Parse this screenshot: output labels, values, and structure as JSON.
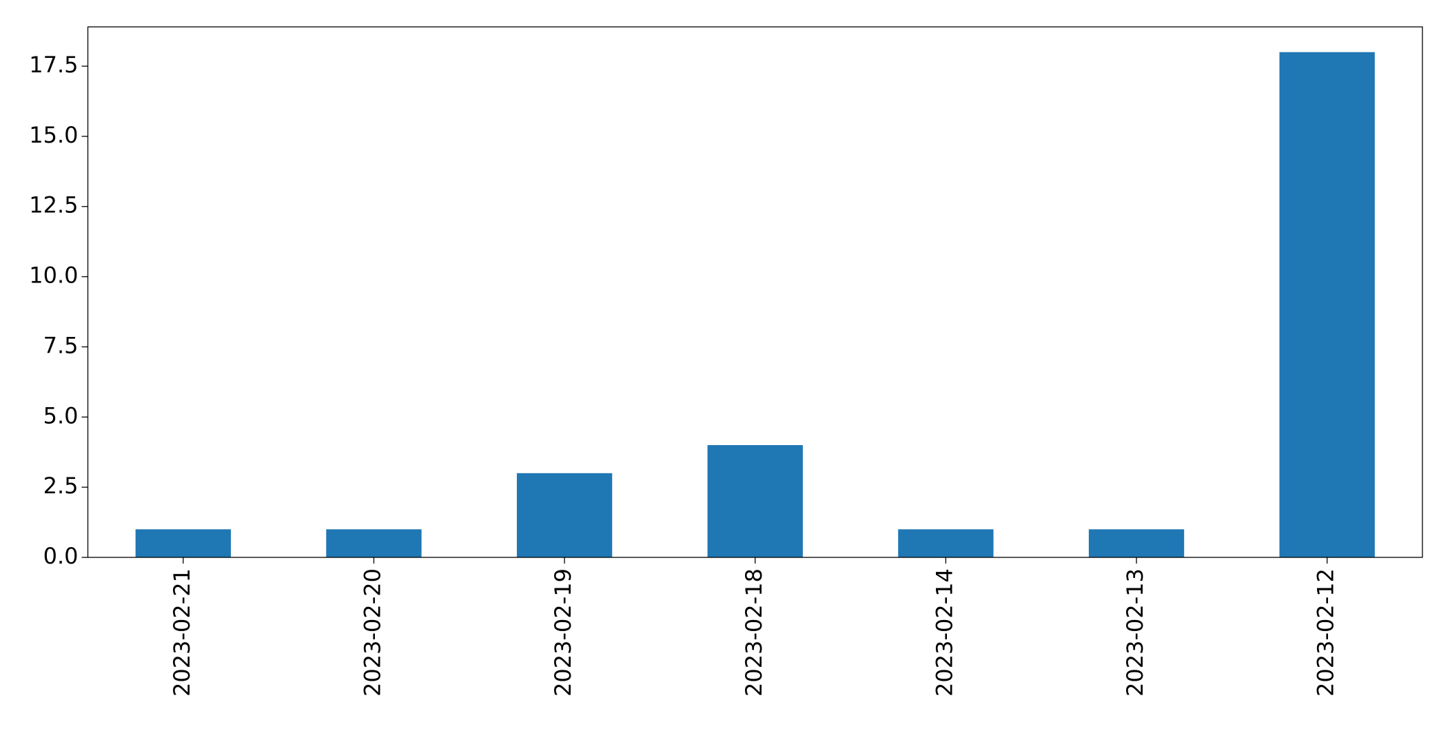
{
  "chart_data": {
    "type": "bar",
    "categories": [
      "2023-02-21",
      "2023-02-20",
      "2023-02-19",
      "2023-02-18",
      "2023-02-14",
      "2023-02-13",
      "2023-02-12"
    ],
    "values": [
      1,
      1,
      3,
      4,
      1,
      1,
      18
    ],
    "color": "#1f77b4",
    "ylim": [
      0,
      18.9
    ],
    "yticks": [
      {
        "value": 0,
        "label": "0.0"
      },
      2.5,
      {
        "value": 5,
        "label": "5.0"
      },
      7.5,
      {
        "value": 10,
        "label": "10.0"
      },
      12.5,
      {
        "value": 15,
        "label": "15.0"
      },
      17.5
    ]
  }
}
